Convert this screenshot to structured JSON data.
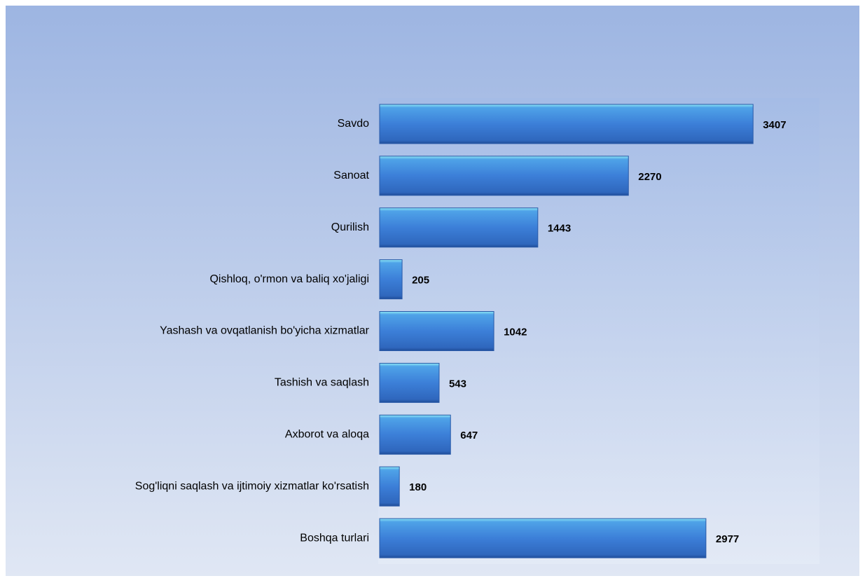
{
  "chart_data": {
    "type": "bar",
    "orientation": "horizontal",
    "categories": [
      "Savdo",
      "Sanoat",
      "Qurilish",
      "Qishloq, o'rmon va baliq xo'jaligi",
      "Yashash va ovqatlanish bo'yicha xizmatlar",
      "Tashish va saqlash",
      "Axborot va aloqa",
      "Sog'liqni saqlash  va ijtimoiy xizmatlar ko'rsatish",
      "Boshqa turlari"
    ],
    "values": [
      3407,
      2270,
      1443,
      205,
      1042,
      543,
      647,
      180,
      2977
    ],
    "color": "#3f7fd6",
    "xlim": [
      0,
      4000
    ]
  }
}
